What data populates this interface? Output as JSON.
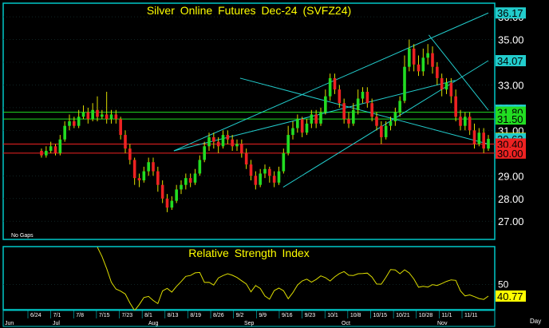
{
  "chart_title": "Silver Online Futures Dec-24 (SVFZ24)",
  "no_gaps_label": "No Gaps",
  "indicator_title": "Relative Strength Index",
  "x_axis_unit": "Day",
  "colors": {
    "frame": "#00c8c8",
    "up_candle": "#22dd22",
    "down_candle": "#ee2222",
    "wick": "#dddd00",
    "trendline": "#22cccc",
    "support_resistance_green": "#22dd22",
    "support_resistance_red": "#ee2222",
    "rsi_line": "#dddd00",
    "title_text": "#ffff00"
  },
  "chart_data": [
    {
      "type": "candlestick",
      "title": "Silver Online Futures Dec-24 (SVFZ24)",
      "ylim": [
        26.2,
        36.6
      ],
      "y_ticks": [
        "27.00",
        "28.00",
        "29.00",
        "30.00",
        "31.00",
        "32.00",
        "33.00",
        "34.00",
        "35.00",
        "36.00"
      ],
      "price_badges": [
        {
          "label": "36.17",
          "value": 36.17,
          "color": "#22cccc"
        },
        {
          "label": "34.07",
          "value": 34.07,
          "color": "#22cccc"
        },
        {
          "label": "31.89",
          "value": 31.89,
          "color": "#22cccc"
        },
        {
          "label": "31.80",
          "value": 31.8,
          "color": "#22dd22"
        },
        {
          "label": "31.50",
          "value": 31.5,
          "color": "#22dd22"
        },
        {
          "label": "30.65",
          "value": 30.65,
          "color": "#ffff00"
        },
        {
          "label": "30.63",
          "value": 30.63,
          "color": "#22cccc"
        },
        {
          "label": "30.40",
          "value": 30.4,
          "color": "#ee2222"
        },
        {
          "label": "30.00",
          "value": 30.0,
          "color": "#ee2222"
        }
      ],
      "horizontal_levels": [
        {
          "value": 31.8,
          "color": "#22dd22"
        },
        {
          "value": 31.5,
          "color": "#22dd22"
        },
        {
          "value": 30.4,
          "color": "#ee2222"
        },
        {
          "value": 30.0,
          "color": "#ee2222"
        }
      ],
      "trendlines": [
        {
          "from": [
            40,
            30.1
          ],
          "to": [
            135,
            36.17
          ]
        },
        {
          "from": [
            40,
            30.1
          ],
          "to": [
            125,
            33.2
          ]
        },
        {
          "from": [
            73,
            28.5
          ],
          "to": [
            135,
            34.07
          ]
        },
        {
          "from": [
            60,
            33.3
          ],
          "to": [
            135,
            30.4
          ]
        },
        {
          "from": [
            117,
            35.2
          ],
          "to": [
            135,
            31.89
          ]
        }
      ],
      "x_tick_labels": [
        "6/24",
        "7/1",
        "7/8",
        "7/15",
        "7/23",
        "8/1",
        "8/13",
        "8/19",
        "8/26",
        "9/2",
        "9/9",
        "9/16",
        "9/23",
        "10/1",
        "10/8",
        "10/15",
        "10/21",
        "10/28",
        "11/1",
        "11/11"
      ],
      "month_labels": [
        "Jun",
        "Jul",
        "Aug",
        "Sep",
        "Oct",
        "Nov"
      ],
      "candles": [
        [
          30.1,
          29.9,
          30.2,
          29.8
        ],
        [
          29.9,
          30.1,
          30.3,
          29.8
        ],
        [
          30.1,
          30.3,
          30.5,
          30.0
        ],
        [
          30.3,
          30.0,
          30.4,
          29.9
        ],
        [
          30.0,
          30.6,
          30.8,
          29.9
        ],
        [
          30.6,
          31.2,
          31.4,
          30.5
        ],
        [
          31.2,
          31.4,
          31.7,
          31.0
        ],
        [
          31.4,
          31.2,
          31.6,
          31.1
        ],
        [
          31.2,
          31.6,
          31.9,
          31.1
        ],
        [
          31.6,
          31.8,
          32.1,
          31.5
        ],
        [
          31.8,
          31.5,
          32.0,
          31.3
        ],
        [
          31.5,
          31.9,
          32.2,
          31.4
        ],
        [
          31.9,
          31.6,
          32.5,
          31.4
        ],
        [
          31.6,
          31.7,
          31.9,
          31.5
        ],
        [
          31.7,
          31.5,
          32.7,
          31.3
        ],
        [
          31.5,
          31.7,
          31.9,
          31.3
        ],
        [
          31.7,
          31.5,
          31.9,
          31.3
        ],
        [
          31.5,
          30.8,
          31.6,
          30.6
        ],
        [
          30.8,
          30.2,
          31.0,
          30.0
        ],
        [
          30.2,
          29.7,
          30.4,
          29.5
        ],
        [
          29.7,
          28.9,
          29.8,
          28.6
        ],
        [
          28.9,
          28.8,
          29.1,
          28.5
        ],
        [
          28.8,
          29.2,
          29.4,
          28.7
        ],
        [
          29.2,
          29.6,
          29.8,
          29.0
        ],
        [
          29.6,
          29.2,
          29.8,
          29.0
        ],
        [
          29.2,
          28.6,
          29.4,
          28.3
        ],
        [
          28.6,
          28.0,
          28.8,
          27.8
        ],
        [
          28.0,
          27.6,
          28.2,
          27.4
        ],
        [
          27.6,
          27.9,
          28.1,
          27.5
        ],
        [
          27.9,
          28.4,
          28.6,
          27.8
        ],
        [
          28.4,
          28.6,
          28.8,
          28.2
        ],
        [
          28.6,
          28.9,
          29.1,
          28.4
        ],
        [
          28.9,
          28.7,
          29.1,
          28.5
        ],
        [
          28.7,
          29.1,
          29.3,
          28.6
        ],
        [
          29.1,
          29.7,
          29.9,
          29.0
        ],
        [
          29.7,
          30.3,
          30.5,
          29.6
        ],
        [
          30.3,
          30.7,
          30.9,
          30.1
        ],
        [
          30.7,
          30.5,
          30.9,
          30.2
        ],
        [
          30.5,
          30.3,
          30.7,
          30.0
        ],
        [
          30.3,
          30.8,
          31.0,
          30.2
        ],
        [
          30.8,
          30.6,
          31.0,
          30.4
        ],
        [
          30.6,
          30.3,
          30.8,
          30.1
        ],
        [
          30.3,
          30.4,
          30.6,
          30.1
        ],
        [
          30.4,
          30.0,
          30.6,
          29.8
        ],
        [
          30.0,
          29.5,
          30.2,
          29.3
        ],
        [
          29.5,
          29.0,
          29.7,
          28.8
        ],
        [
          29.0,
          28.6,
          29.2,
          28.4
        ],
        [
          28.6,
          29.1,
          29.3,
          28.5
        ],
        [
          29.1,
          29.3,
          29.5,
          28.9
        ],
        [
          29.3,
          29.0,
          29.4,
          28.7
        ],
        [
          29.0,
          28.7,
          29.2,
          28.5
        ],
        [
          28.7,
          29.2,
          29.4,
          28.6
        ],
        [
          29.2,
          30.0,
          30.2,
          29.1
        ],
        [
          30.0,
          30.8,
          31.2,
          29.9
        ],
        [
          30.8,
          31.1,
          31.4,
          30.6
        ],
        [
          31.1,
          31.5,
          31.7,
          30.9
        ],
        [
          31.5,
          30.9,
          31.6,
          30.7
        ],
        [
          30.9,
          31.3,
          31.5,
          30.8
        ],
        [
          31.3,
          31.7,
          31.9,
          31.1
        ],
        [
          31.7,
          31.3,
          31.9,
          31.1
        ],
        [
          31.3,
          31.8,
          32.0,
          31.2
        ],
        [
          31.8,
          32.5,
          32.8,
          31.7
        ],
        [
          32.5,
          33.3,
          33.5,
          32.3
        ],
        [
          33.3,
          32.8,
          33.5,
          32.6
        ],
        [
          32.8,
          32.2,
          33.0,
          32.0
        ],
        [
          32.2,
          31.5,
          32.4,
          31.3
        ],
        [
          31.5,
          31.3,
          31.8,
          31.1
        ],
        [
          31.3,
          31.9,
          32.2,
          31.2
        ],
        [
          31.9,
          32.4,
          32.8,
          31.7
        ],
        [
          32.4,
          32.7,
          32.9,
          32.2
        ],
        [
          32.7,
          32.2,
          32.9,
          32.0
        ],
        [
          32.2,
          31.6,
          32.4,
          31.4
        ],
        [
          31.6,
          31.2,
          31.8,
          31.0
        ],
        [
          31.2,
          30.7,
          31.4,
          30.4
        ],
        [
          30.7,
          31.2,
          31.4,
          30.6
        ],
        [
          31.2,
          31.4,
          31.6,
          31.0
        ],
        [
          31.4,
          31.8,
          32.0,
          31.2
        ],
        [
          31.8,
          32.3,
          32.5,
          31.6
        ],
        [
          32.3,
          33.8,
          34.3,
          32.2
        ],
        [
          33.8,
          34.6,
          35.0,
          33.6
        ],
        [
          34.6,
          33.9,
          34.8,
          33.6
        ],
        [
          33.9,
          33.6,
          34.3,
          33.4
        ],
        [
          33.6,
          34.2,
          34.6,
          33.4
        ],
        [
          34.2,
          34.4,
          34.8,
          33.9
        ],
        [
          34.4,
          33.8,
          34.7,
          33.5
        ],
        [
          33.8,
          33.3,
          34.0,
          33.0
        ],
        [
          33.3,
          32.8,
          33.5,
          32.5
        ],
        [
          32.8,
          33.1,
          33.3,
          32.6
        ],
        [
          33.1,
          32.5,
          33.3,
          32.2
        ],
        [
          32.5,
          31.6,
          32.8,
          31.4
        ],
        [
          31.6,
          31.2,
          31.9,
          31.0
        ],
        [
          31.2,
          31.6,
          31.8,
          31.0
        ],
        [
          31.6,
          31.0,
          31.8,
          30.8
        ],
        [
          31.0,
          30.4,
          31.3,
          30.2
        ],
        [
          30.4,
          30.9,
          31.1,
          30.3
        ],
        [
          30.9,
          30.2,
          31.1,
          30.0
        ],
        [
          30.2,
          30.63,
          30.8,
          30.1
        ]
      ]
    },
    {
      "type": "line",
      "title": "Relative Strength Index",
      "ylim": [
        30,
        80
      ],
      "y_ticks": [
        "50"
      ],
      "last_value_label": "40.77",
      "values": [
        79.6,
        72.2,
        62.5,
        51.8,
        46.4,
        44.7,
        42.4,
        35.3,
        29.3,
        34.0,
        39.6,
        40.5,
        37.3,
        34.8,
        44.9,
        46.9,
        43.9,
        48.5,
        52.3,
        56.4,
        57.1,
        59.2,
        59.5,
        51.6,
        51.7,
        49.5,
        55.2,
        57.0,
        58.5,
        57.3,
        55.5,
        52.9,
        50.4,
        44.1,
        49.1,
        46.8,
        40.8,
        38.3,
        45.2,
        47.1,
        45.0,
        38.7,
        43.5,
        49.5,
        52.8,
        54.2,
        51.8,
        53.9,
        56.8,
        55.4,
        52.7,
        56.0,
        58.6,
        60.2,
        57.3,
        57.1,
        58.5,
        58.7,
        59.0,
        55.8,
        50.3,
        50.2,
        55.7,
        61.8,
        61.5,
        58.5,
        61.6,
        59.1,
        54.3,
        47.8,
        48.5,
        47.9,
        49.9,
        49.2,
        50.7,
        52.4,
        53.6,
        53.2,
        44.9,
        40.9,
        41.7,
        40.3,
        38.8,
        38.1,
        40.77
      ]
    }
  ]
}
